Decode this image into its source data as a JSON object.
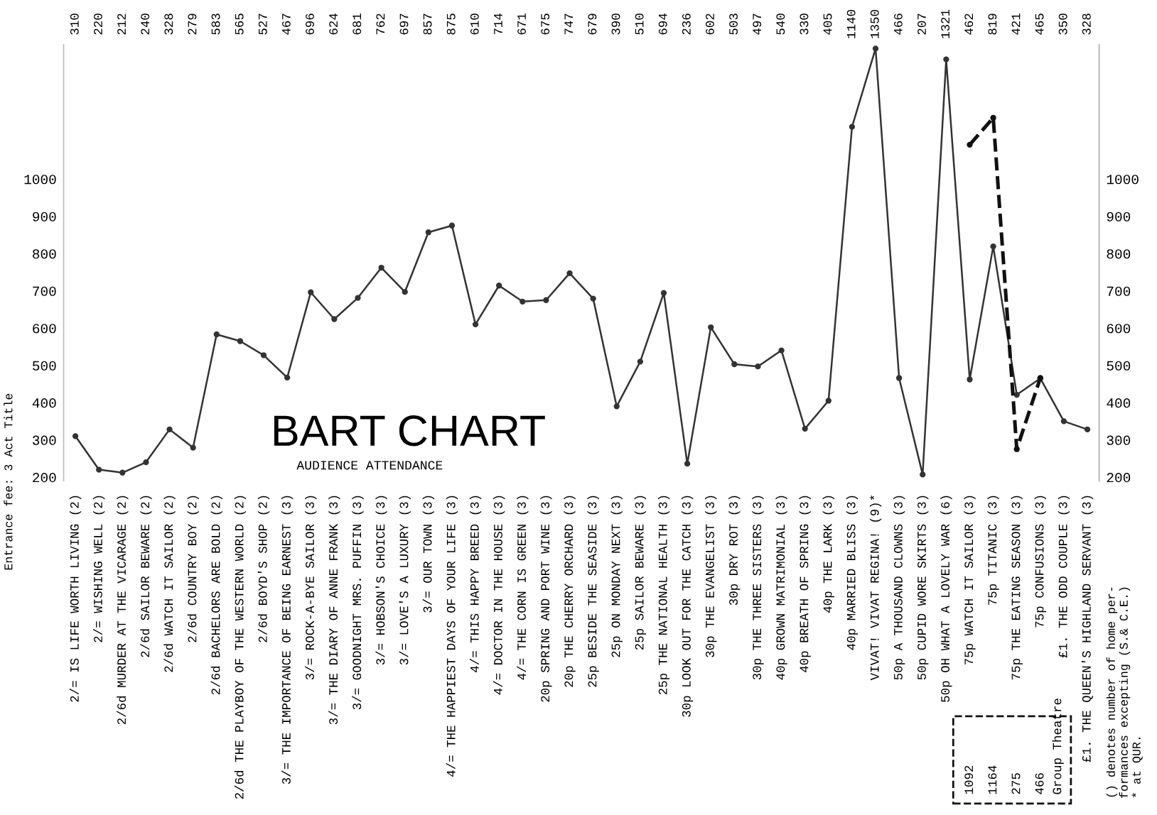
{
  "chart_data": {
    "type": "line",
    "title": "BART CHART",
    "subtitle": "AUDIENCE ATTENDANCE",
    "categories": [
      "2/= IS LIFE WORTH LIVING (2)",
      "2/= WISHING WELL (2)",
      "2/6d MURDER AT THE VICARAGE (2)",
      "2/6d SAILOR BEWARE (2)",
      "2/6d WATCH IT SAILOR (2)",
      "2/6d COUNTRY BOY (2)",
      "2/6d BACHELORS ARE BOLD (2)",
      "2/6d THE PLAYBOY OF THE WESTERN WORLD (2)",
      "2/6d BOYD'S SHOP (2)",
      "3/= THE IMPORTANCE OF BEING EARNEST (3)",
      "3/= ROCK-A-BYE SAILOR (3)",
      "3/= THE DIARY OF ANNE FRANK (3)",
      "3/= GOODNIGHT MRS. PUFFIN (3)",
      "3/= HOBSON'S CHOICE (3)",
      "3/= LOVE'S A LUXURY (3)",
      "3/= OUR TOWN (3)",
      "4/= THE HAPPIEST DAYS OF YOUR LIFE (3)",
      "4/= THIS HAPPY BREED (3)",
      "4/= DOCTOR IN THE HOUSE (3)",
      "4/= THE CORN IS GREEN (3)",
      "20p SPRING AND PORT WINE (3)",
      "20p THE CHERRY ORCHARD (3)",
      "25p BESIDE THE SEASIDE (3)",
      "25p ON MONDAY NEXT (3)",
      "25p SAILOR BEWARE (3)",
      "25p THE NATIONAL HEALTH (3)",
      "30p LOOK OUT FOR THE CATCH (3)",
      "30p THE EVANGELIST (3)",
      "30p DRY ROT (3)",
      "30p THE THREE SISTERS (3)",
      "40p GROWN MATRIMONIAL (3)",
      "40p BREATH OF SPRING (3)",
      "40p THE LARK (3)",
      "40p MARRIED BLISS (3)",
      "VIVAT! VIVAT REGINA! (9)*",
      "50p A THOUSAND CLOWNS (3)",
      "50p CUPID WORE SKIRTS (3)",
      "50p OH WHAT A LOVELY WAR (6)",
      "75p WATCH IT SAILOR (3)",
      "75p TITANIC (3)",
      "75p THE EATING SEASON (3)",
      "75p CONFUSIONS (3)",
      "£1. THE ODD COUPLE (3)",
      "£1. THE QUEEN'S HIGHLAND SERVANT (3)"
    ],
    "series": [
      {
        "color": "#333333",
        "line_style": "solid",
        "values": [
          310,
          220,
          212,
          240,
          328,
          279,
          583,
          565,
          527,
          467,
          696,
          624,
          681,
          762,
          697,
          857,
          875,
          610,
          714,
          671,
          675,
          747,
          679,
          390,
          510,
          694,
          236,
          602,
          503,
          497,
          540,
          330,
          405,
          1140,
          1350,
          466,
          207,
          1321,
          462,
          819,
          421,
          465,
          350,
          328
        ]
      },
      {
        "name": "Group Theatre",
        "color": "#111111",
        "line_style": "dashed",
        "values": [
          null,
          null,
          null,
          null,
          null,
          null,
          null,
          null,
          null,
          null,
          null,
          null,
          null,
          null,
          null,
          null,
          null,
          null,
          null,
          null,
          null,
          null,
          null,
          null,
          null,
          null,
          null,
          null,
          null,
          null,
          null,
          null,
          null,
          null,
          null,
          null,
          null,
          null,
          1092,
          1164,
          275,
          466,
          null,
          null
        ]
      }
    ],
    "ylim": [
      190,
      1360
    ],
    "yticks": [
      200,
      300,
      400,
      500,
      600,
      700,
      800,
      900,
      1000
    ],
    "y2lim": [
      190,
      1360
    ],
    "y2ticks": [
      200,
      300,
      400,
      500,
      600,
      700,
      800,
      900,
      1000
    ],
    "data_labels": true,
    "grid": false,
    "legend": false,
    "marker": "circle",
    "annotations": [
      "Entrance fee: 3 Act Title",
      "() denotes number of home per-\nformances excepting (S.& C.E.)\n* at QUR."
    ]
  }
}
